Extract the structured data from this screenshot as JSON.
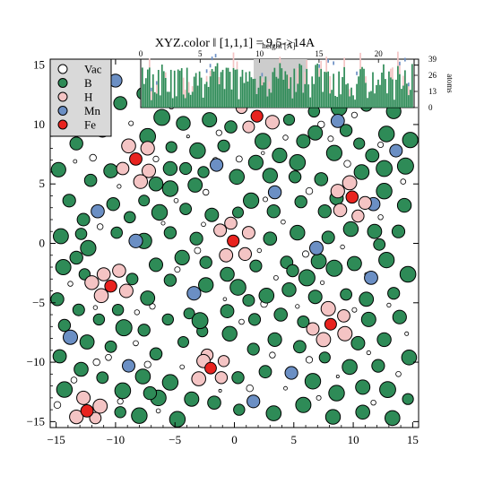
{
  "chart_data": {
    "type": "scatter",
    "title": "XYZ.color ‖ [1,1,1] = 9.5->14A",
    "xlim": [
      -15.5,
      15.5
    ],
    "ylim": [
      -15.5,
      15.5
    ],
    "x_ticks": [
      -15,
      -10,
      -5,
      0,
      5,
      10,
      15
    ],
    "y_ticks": [
      -15,
      -10,
      -5,
      0,
      5,
      10,
      15
    ],
    "grid": false,
    "legend_position": "top-left",
    "legend": [
      {
        "label": "Vac",
        "color": "#ffffff"
      },
      {
        "label": "B",
        "color": "#2e8b57"
      },
      {
        "label": "H",
        "color": "#f4c4c4"
      },
      {
        "label": "Mn",
        "color": "#6b8fc4"
      },
      {
        "label": "Fe",
        "color": "#e8231f"
      }
    ],
    "series": [
      {
        "name": "Fe",
        "color": "#e8231f",
        "points": [
          [
            -8.3,
            7.1
          ],
          [
            9.9,
            3.9
          ],
          [
            -0.1,
            0.2
          ],
          [
            -10.4,
            -3.6
          ],
          [
            8.1,
            -6.8
          ],
          [
            -2.0,
            -10.5
          ],
          [
            -12.4,
            -14.1
          ],
          [
            1.9,
            10.7
          ]
        ]
      },
      {
        "name": "H",
        "color": "#f4c4c4",
        "points": [
          [
            -8.9,
            8.2
          ],
          [
            -7.3,
            8.0
          ],
          [
            -7.2,
            6.1
          ],
          [
            -9.4,
            6.3
          ],
          [
            -7.9,
            5.2
          ],
          [
            9.7,
            5.1
          ],
          [
            8.7,
            4.4
          ],
          [
            8.9,
            2.8
          ],
          [
            11.0,
            3.4
          ],
          [
            10.4,
            2.3
          ],
          [
            -0.3,
            1.7
          ],
          [
            1.2,
            0.9
          ],
          [
            -1.2,
            1.1
          ],
          [
            0.9,
            -0.9
          ],
          [
            -0.7,
            -1.0
          ],
          [
            -11.0,
            -2.6
          ],
          [
            -9.7,
            -2.3
          ],
          [
            -9.1,
            -4.0
          ],
          [
            -11.2,
            -4.4
          ],
          [
            -12.0,
            -3.3
          ],
          [
            7.9,
            -5.5
          ],
          [
            9.2,
            -6.1
          ],
          [
            6.6,
            -7.2
          ],
          [
            7.5,
            -8.1
          ],
          [
            9.3,
            -7.6
          ],
          [
            -2.3,
            -9.4
          ],
          [
            -0.9,
            -9.9
          ],
          [
            -1.1,
            -11.3
          ],
          [
            -3.0,
            -11.4
          ],
          [
            -2.6,
            -9.9
          ],
          [
            -12.7,
            -13.0
          ],
          [
            -11.3,
            -13.7
          ],
          [
            -13.3,
            -14.6
          ],
          [
            -11.7,
            -14.7
          ],
          [
            1.2,
            9.8
          ],
          [
            3.2,
            10.2
          ],
          [
            0.6,
            11.4
          ]
        ]
      },
      {
        "name": "Mn",
        "color": "#6b8fc4",
        "points": [
          [
            -10.0,
            13.7
          ],
          [
            -1.5,
            6.6
          ],
          [
            -11.5,
            2.7
          ],
          [
            -8.3,
            0.2
          ],
          [
            -3.4,
            -4.2
          ],
          [
            6.9,
            -0.4
          ],
          [
            -13.8,
            -7.9
          ],
          [
            4.8,
            -10.9
          ],
          [
            8.7,
            10.3
          ],
          [
            11.7,
            3.3
          ],
          [
            -8.9,
            -10.3
          ],
          [
            13.6,
            7.8
          ],
          [
            11.5,
            -2.9
          ],
          [
            1.6,
            -13.3
          ],
          [
            3.4,
            4.3
          ]
        ]
      },
      {
        "name": "B",
        "color": "#2e8b57",
        "points": [
          [
            -14.6,
            11.4
          ],
          [
            -12.6,
            10.8
          ],
          [
            -11.1,
            9.6
          ],
          [
            -13.3,
            8.4
          ],
          [
            -14.8,
            6.2
          ],
          [
            -12.1,
            5.3
          ],
          [
            -10.4,
            6.1
          ],
          [
            -13.9,
            3.6
          ],
          [
            -12.7,
            2.0
          ],
          [
            -10.2,
            3.3
          ],
          [
            -14.6,
            0.6
          ],
          [
            -12.3,
            -0.4
          ],
          [
            -9.9,
            0.9
          ],
          [
            -14.4,
            -2.0
          ],
          [
            -12.6,
            -2.6
          ],
          [
            -14.9,
            -4.7
          ],
          [
            -13.1,
            -5.6
          ],
          [
            -11.4,
            -6.4
          ],
          [
            -9.3,
            -7.1
          ],
          [
            -14.3,
            -6.9
          ],
          [
            -12.4,
            -8.3
          ],
          [
            -10.4,
            -8.7
          ],
          [
            -14.7,
            -9.5
          ],
          [
            -12.9,
            -10.6
          ],
          [
            -11.1,
            -11.3
          ],
          [
            -9.4,
            -12.4
          ],
          [
            -14.3,
            -12.3
          ],
          [
            -8.0,
            -14.5
          ],
          [
            -6.4,
            -13.0
          ],
          [
            -5.4,
            -11.7
          ],
          [
            -7.7,
            -11.2
          ],
          [
            -6.6,
            -9.3
          ],
          [
            -4.3,
            -8.3
          ],
          [
            -7.6,
            -7.3
          ],
          [
            -5.6,
            -6.4
          ],
          [
            -3.8,
            -5.9
          ],
          [
            -7.3,
            -4.6
          ],
          [
            -5.4,
            -3.1
          ],
          [
            -2.4,
            -3.5
          ],
          [
            -6.6,
            -1.8
          ],
          [
            -4.4,
            -1.2
          ],
          [
            -2.4,
            -1.6
          ],
          [
            -7.6,
            0.2
          ],
          [
            -5.4,
            0.9
          ],
          [
            -3.2,
            0.4
          ],
          [
            -6.3,
            2.6
          ],
          [
            -4.1,
            2.9
          ],
          [
            -1.9,
            2.4
          ],
          [
            -7.6,
            3.6
          ],
          [
            -5.4,
            4.6
          ],
          [
            -3.3,
            4.9
          ],
          [
            -7.3,
            9.0
          ],
          [
            -5.3,
            8.1
          ],
          [
            -3.1,
            7.8
          ],
          [
            -0.9,
            8.2
          ],
          [
            -6.1,
            10.6
          ],
          [
            -4.3,
            10.1
          ],
          [
            -2.1,
            10.4
          ],
          [
            -0.3,
            9.8
          ],
          [
            -4.6,
            12.2
          ],
          [
            -7.7,
            12.6
          ],
          [
            -5.4,
            6.3
          ],
          [
            -2.6,
            6.0
          ],
          [
            0.2,
            5.6
          ],
          [
            1.8,
            6.8
          ],
          [
            3.8,
            7.4
          ],
          [
            5.8,
            8.6
          ],
          [
            4.6,
            10.4
          ],
          [
            6.7,
            11.1
          ],
          [
            8.8,
            11.4
          ],
          [
            11.1,
            11.6
          ],
          [
            13.4,
            11.1
          ],
          [
            12.8,
            9.2
          ],
          [
            10.5,
            8.4
          ],
          [
            8.4,
            7.6
          ],
          [
            14.8,
            8.7
          ],
          [
            14.4,
            6.5
          ],
          [
            12.6,
            6.3
          ],
          [
            10.7,
            6.0
          ],
          [
            7.3,
            5.4
          ],
          [
            5.1,
            5.6
          ],
          [
            3.0,
            5.7
          ],
          [
            1.4,
            3.6
          ],
          [
            3.3,
            2.7
          ],
          [
            5.6,
            3.5
          ],
          [
            7.6,
            2.7
          ],
          [
            12.6,
            4.4
          ],
          [
            14.3,
            3.2
          ],
          [
            13.8,
            1.0
          ],
          [
            11.8,
            1.0
          ],
          [
            9.8,
            1.2
          ],
          [
            7.9,
            0.5
          ],
          [
            5.3,
            0.9
          ],
          [
            3.0,
            0.4
          ],
          [
            1.8,
            -1.9
          ],
          [
            4.4,
            -1.6
          ],
          [
            6.1,
            -2.9
          ],
          [
            8.4,
            -2.1
          ],
          [
            10.1,
            -1.7
          ],
          [
            12.8,
            -1.4
          ],
          [
            14.6,
            -2.6
          ],
          [
            13.4,
            -4.2
          ],
          [
            11.1,
            -4.7
          ],
          [
            9.4,
            -4.3
          ],
          [
            6.8,
            -4.5
          ],
          [
            4.6,
            -3.9
          ],
          [
            2.7,
            -4.4
          ],
          [
            0.3,
            -3.7
          ],
          [
            -0.6,
            -5.7
          ],
          [
            1.7,
            -6.4
          ],
          [
            3.9,
            -6.0
          ],
          [
            5.8,
            -6.6
          ],
          [
            11.3,
            -6.4
          ],
          [
            13.9,
            -6.2
          ],
          [
            12.6,
            -8.1
          ],
          [
            10.4,
            -8.4
          ],
          [
            14.7,
            -9.6
          ],
          [
            12.1,
            -10.3
          ],
          [
            9.7,
            -10.4
          ],
          [
            7.6,
            -9.6
          ],
          [
            5.5,
            -8.7
          ],
          [
            3.4,
            -8.1
          ],
          [
            1.6,
            -8.9
          ],
          [
            -0.4,
            -7.6
          ],
          [
            2.6,
            -10.8
          ],
          [
            0.3,
            -11.3
          ],
          [
            -3.6,
            -13.1
          ],
          [
            -1.7,
            -13.4
          ],
          [
            0.4,
            -14.0
          ],
          [
            3.3,
            -14.3
          ],
          [
            5.8,
            -13.6
          ],
          [
            6.6,
            -11.6
          ],
          [
            8.6,
            -12.6
          ],
          [
            10.8,
            -12.1
          ],
          [
            12.9,
            -12.3
          ],
          [
            14.6,
            -13.1
          ],
          [
            13.3,
            -14.7
          ],
          [
            10.8,
            -14.2
          ],
          [
            8.3,
            -14.6
          ],
          [
            -4.8,
            -14.8
          ],
          [
            -2.7,
            -7.4
          ],
          [
            -8.6,
            -3.0
          ],
          [
            -9.8,
            -5.6
          ],
          [
            -12.9,
            0.8
          ],
          [
            -8.8,
            2.2
          ],
          [
            0.3,
            2.6
          ],
          [
            -0.6,
            -2.6
          ],
          [
            2.4,
            8.6
          ],
          [
            -1.4,
            12.7
          ],
          [
            0.9,
            12.9
          ],
          [
            3.6,
            12.3
          ],
          [
            6.8,
            9.3
          ],
          [
            9.4,
            9.5
          ],
          [
            11.6,
            7.4
          ],
          [
            13.9,
            12.9
          ],
          [
            -9.6,
            11.8
          ],
          [
            -11.7,
            12.4
          ],
          [
            -14.3,
            13.2
          ],
          [
            -13.3,
            -1.2
          ],
          [
            -7.1,
            -12.6
          ],
          [
            -9.6,
            -14.2
          ],
          [
            4.9,
            -2.3
          ],
          [
            7.1,
            -1.5
          ],
          [
            -2.9,
            -6.5
          ],
          [
            1.2,
            -4.8
          ],
          [
            5.3,
            6.8
          ],
          [
            8.6,
            3.8
          ],
          [
            12.2,
            -0.1
          ],
          [
            -4.1,
            6.3
          ],
          [
            -6.6,
            5.0
          ]
        ]
      },
      {
        "name": "Vac",
        "color": "#ffffff",
        "points": [
          [
            -13.7,
            12.3
          ],
          [
            -11.9,
            7.2
          ],
          [
            -9.7,
            4.8
          ],
          [
            -13.4,
            6.9
          ],
          [
            -11.3,
            1.4
          ],
          [
            -13.8,
            -3.4
          ],
          [
            -11.7,
            -5.4
          ],
          [
            -10.6,
            -9.6
          ],
          [
            -13.5,
            -11.5
          ],
          [
            -8.3,
            -8.4
          ],
          [
            -6.9,
            -5.3
          ],
          [
            -4.8,
            -2.2
          ],
          [
            -3.1,
            -0.6
          ],
          [
            -6.0,
            1.7
          ],
          [
            -4.9,
            3.6
          ],
          [
            -2.4,
            4.3
          ],
          [
            -6.6,
            7.1
          ],
          [
            -3.9,
            9.0
          ],
          [
            -1.3,
            9.3
          ],
          [
            -5.3,
            11.5
          ],
          [
            -2.8,
            12.4
          ],
          [
            0.4,
            7.1
          ],
          [
            2.4,
            7.6
          ],
          [
            4.3,
            8.9
          ],
          [
            7.3,
            10.0
          ],
          [
            10.1,
            10.8
          ],
          [
            12.3,
            8.3
          ],
          [
            14.2,
            5.2
          ],
          [
            9.5,
            6.7
          ],
          [
            6.3,
            4.4
          ],
          [
            4.1,
            1.8
          ],
          [
            2.1,
            -0.6
          ],
          [
            6.0,
            -0.9
          ],
          [
            9.1,
            -0.3
          ],
          [
            11.1,
            -2.6
          ],
          [
            13.0,
            -5.2
          ],
          [
            10.1,
            -5.6
          ],
          [
            5.3,
            -5.3
          ],
          [
            2.5,
            -5.1
          ],
          [
            0.6,
            -6.6
          ],
          [
            3.2,
            -9.4
          ],
          [
            6.3,
            -9.8
          ],
          [
            8.7,
            -11.2
          ],
          [
            11.3,
            -9.2
          ],
          [
            13.8,
            -11.0
          ],
          [
            11.7,
            -13.4
          ],
          [
            7.1,
            -13.0
          ],
          [
            4.3,
            -12.2
          ],
          [
            1.3,
            -12.2
          ],
          [
            -1.2,
            -12.4
          ],
          [
            -4.4,
            -10.4
          ],
          [
            -6.4,
            -14.1
          ],
          [
            -9.6,
            -13.3
          ],
          [
            -11.6,
            -10.0
          ],
          [
            -8.2,
            -5.8
          ],
          [
            -0.8,
            -4.7
          ],
          [
            3.5,
            -2.9
          ],
          [
            7.4,
            -3.3
          ],
          [
            -2.6,
            1.6
          ],
          [
            -8.7,
            10.1
          ],
          [
            -12.5,
            9.7
          ],
          [
            5.5,
            12.1
          ],
          [
            12.1,
            12.3
          ],
          [
            14.5,
            -7.6
          ],
          [
            -14.9,
            -13.6
          ],
          [
            2.6,
            3.7
          ],
          [
            -7.3,
            -10.2
          ],
          [
            -1.6,
            7.0
          ],
          [
            8.1,
            8.8
          ],
          [
            12.3,
            2.2
          ]
        ]
      }
    ],
    "inset": {
      "title": "height [A]",
      "type": "bar",
      "x_ticks": [
        0,
        5,
        10,
        15,
        20
      ],
      "y_ticks": [
        0,
        13,
        26,
        39
      ],
      "ylabel": "atoms",
      "highlight_range": [
        9.5,
        14
      ],
      "bar_color": "#2e8b57"
    }
  }
}
